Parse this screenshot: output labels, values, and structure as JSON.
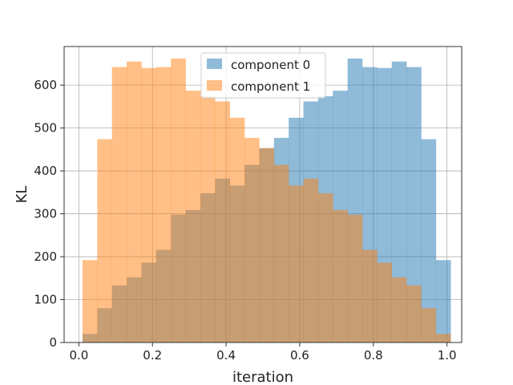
{
  "chart_data": {
    "type": "histogram",
    "xlabel": "iteration",
    "ylabel": "KL",
    "xlim": [
      -0.04,
      1.04
    ],
    "ylim": [
      0,
      690
    ],
    "xticks": [
      0.0,
      0.2,
      0.4,
      0.6,
      0.8,
      1.0
    ],
    "xtick_labels": [
      "0.0",
      "0.2",
      "0.4",
      "0.6",
      "0.8",
      "1.0"
    ],
    "yticks": [
      0,
      100,
      200,
      300,
      400,
      500,
      600
    ],
    "ytick_labels": [
      "0",
      "100",
      "200",
      "300",
      "400",
      "500",
      "600"
    ],
    "grid": true,
    "legend_position": "top-center",
    "bin_edges": [
      0.01,
      0.05,
      0.09,
      0.13,
      0.17,
      0.21,
      0.25,
      0.29,
      0.33,
      0.37,
      0.41,
      0.45,
      0.49,
      0.53,
      0.57,
      0.61,
      0.65,
      0.69,
      0.73,
      0.77,
      0.81,
      0.85,
      0.89,
      0.93,
      0.97,
      1.01
    ],
    "series": [
      {
        "name": "component 0",
        "color": "#1f77b4",
        "alpha": 0.5,
        "values": [
          20,
          80,
          133,
          152,
          186,
          216,
          298,
          309,
          348,
          382,
          366,
          414,
          453,
          477,
          524,
          562,
          574,
          587,
          662,
          642,
          640,
          655,
          642,
          474,
          192
        ]
      },
      {
        "name": "component 1",
        "color": "#ff7f0e",
        "alpha": 0.5,
        "values": [
          192,
          474,
          642,
          655,
          640,
          642,
          662,
          587,
          574,
          562,
          524,
          477,
          453,
          414,
          366,
          382,
          348,
          309,
          298,
          216,
          186,
          152,
          133,
          80,
          20
        ]
      }
    ]
  }
}
